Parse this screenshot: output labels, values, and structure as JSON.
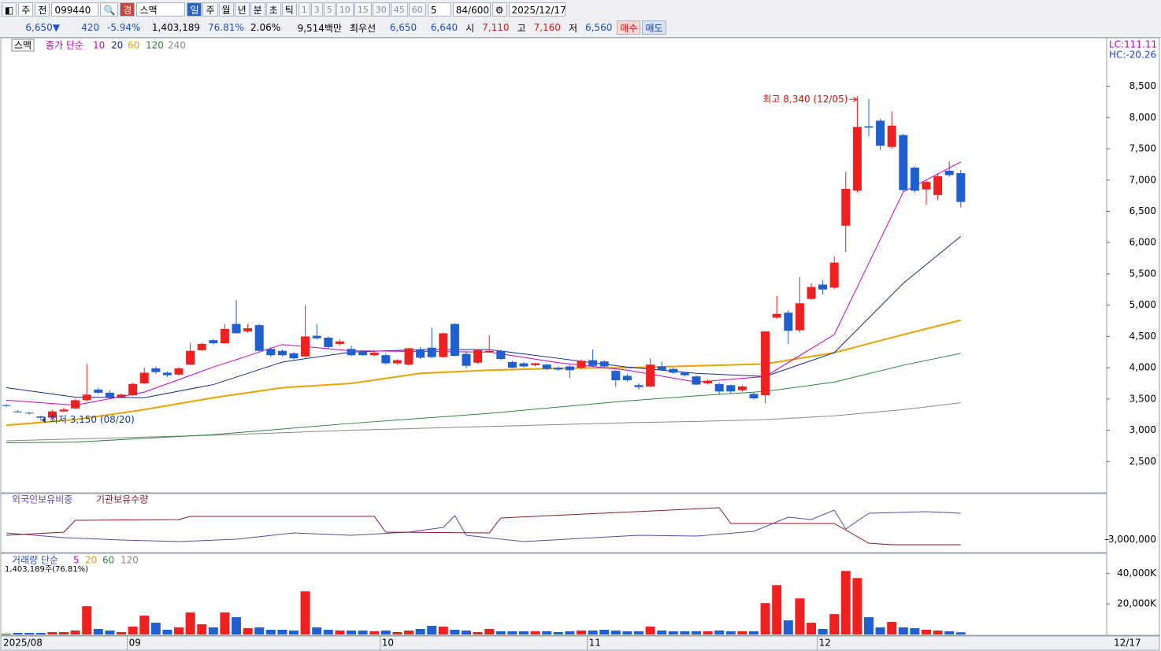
{
  "toolbar": {
    "market": "주",
    "prev": "전",
    "code": "099440",
    "badge": "경",
    "name": "스맥",
    "periods": [
      "일",
      "주",
      "월",
      "년",
      "분",
      "초",
      "틱"
    ],
    "minutes": [
      "1",
      "3",
      "5",
      "10",
      "15",
      "30",
      "45",
      "60"
    ],
    "interval": "5",
    "count": "84/600",
    "date": "2025/12/17"
  },
  "quote": {
    "price": "6,650",
    "arrow": "▼",
    "change": "420",
    "change_rate": "-5.94%",
    "volume": "1,403,189",
    "volume_ratio": "76.81%",
    "turnover": "2.06%",
    "amount": "9,514백만",
    "best_label": "최우선",
    "ask": "6,650",
    "bid": "6,640",
    "open_label": "시",
    "open": "7,110",
    "high_label": "고",
    "high": "7,160",
    "low_label": "저",
    "low": "6,560",
    "buy": "매수",
    "sell": "매도"
  },
  "chart_data": [
    {
      "type": "candlestick",
      "title": "스맥",
      "ma_label": "종가 단순",
      "up_color": "#ee2020",
      "down_color": "#1f5fd0",
      "categories": [
        "2025/08",
        null,
        null,
        null,
        null,
        null,
        null,
        null,
        null,
        null,
        null,
        "09",
        null,
        null,
        null,
        null,
        null,
        null,
        null,
        null,
        null,
        null,
        null,
        null,
        null,
        null,
        null,
        null,
        null,
        null,
        null,
        null,
        null,
        "10",
        null,
        null,
        null,
        null,
        null,
        null,
        null,
        null,
        null,
        null,
        null,
        null,
        null,
        null,
        null,
        null,
        null,
        "11",
        null,
        null,
        null,
        null,
        null,
        null,
        null,
        null,
        null,
        null,
        null,
        null,
        null,
        null,
        null,
        null,
        null,
        null,
        null,
        "12",
        null,
        null,
        null,
        null,
        null,
        null,
        null,
        null,
        null,
        null,
        null,
        null
      ],
      "open": [
        3400,
        3300,
        3280,
        3220,
        3200,
        3300,
        3350,
        3480,
        3650,
        3600,
        3530,
        3560,
        3750,
        3990,
        3920,
        3890,
        4050,
        4280,
        4440,
        4390,
        4700,
        4580,
        4680,
        4300,
        4270,
        4230,
        4180,
        4510,
        4480,
        4380,
        4300,
        4260,
        4200,
        4200,
        4070,
        4050,
        4290,
        4320,
        4170,
        4700,
        4220,
        4080,
        4250,
        4270,
        4090,
        4070,
        4040,
        4050,
        4000,
        4020,
        4000,
        4120,
        4100,
        3950,
        3870,
        3720,
        3700,
        4020,
        3980,
        3920,
        3860,
        3750,
        3740,
        3720,
        3640,
        3580,
        3560,
        4800,
        4880,
        4600,
        5100,
        5330,
        5280,
        6270,
        6830,
        7860,
        7950,
        7530,
        7720,
        7200,
        6850,
        6760,
        7150,
        7110
      ],
      "high": [
        3420,
        3320,
        3290,
        3230,
        3320,
        3360,
        3500,
        4060,
        3680,
        3640,
        3590,
        3760,
        4000,
        4020,
        3940,
        4010,
        4400,
        4400,
        4460,
        4700,
        5080,
        4700,
        4700,
        4330,
        4290,
        4250,
        5000,
        4700,
        4500,
        4450,
        4350,
        4280,
        4260,
        4230,
        4130,
        4320,
        4330,
        4640,
        4560,
        4710,
        4260,
        4300,
        4520,
        4290,
        4110,
        4090,
        4080,
        4060,
        4020,
        4040,
        4130,
        4290,
        4120,
        3960,
        3900,
        3750,
        4150,
        4100,
        4000,
        3930,
        3880,
        3810,
        3760,
        3730,
        3720,
        3600,
        4580,
        5150,
        4920,
        5450,
        5350,
        5400,
        5780,
        7140,
        8340,
        8300,
        7980,
        8100,
        7740,
        7220,
        7000,
        7100,
        7300,
        7160
      ],
      "low": [
        3370,
        3280,
        3250,
        3150,
        3170,
        3290,
        3340,
        3460,
        3580,
        3500,
        3510,
        3550,
        3740,
        3900,
        3850,
        3870,
        4040,
        4270,
        4370,
        4380,
        4550,
        4560,
        4250,
        4170,
        4180,
        4130,
        4160,
        4450,
        4300,
        4350,
        4180,
        4190,
        4180,
        4050,
        4050,
        4030,
        4140,
        4150,
        4160,
        4180,
        3990,
        4060,
        4240,
        4120,
        3990,
        4000,
        4020,
        3960,
        3950,
        3830,
        3980,
        4010,
        4000,
        3690,
        3780,
        3650,
        3690,
        3950,
        3900,
        3860,
        3720,
        3730,
        3570,
        3590,
        3620,
        3490,
        3430,
        4780,
        4380,
        4560,
        5080,
        5170,
        5260,
        5850,
        6800,
        7700,
        7480,
        7500,
        6820,
        6800,
        6600,
        6680,
        7050,
        6560
      ],
      "close": [
        3390,
        3290,
        3270,
        3200,
        3300,
        3330,
        3480,
        3570,
        3600,
        3530,
        3570,
        3740,
        3920,
        3930,
        3880,
        3990,
        4270,
        4380,
        4390,
        4620,
        4550,
        4630,
        4270,
        4200,
        4200,
        4150,
        4500,
        4470,
        4330,
        4420,
        4200,
        4200,
        4240,
        4070,
        4120,
        4310,
        4160,
        4170,
        4550,
        4190,
        4030,
        4280,
        4270,
        4140,
        4000,
        4020,
        4070,
        3980,
        3970,
        3960,
        4110,
        4030,
        4020,
        3800,
        3800,
        3690,
        4050,
        3960,
        3920,
        3880,
        3730,
        3790,
        3620,
        3620,
        3700,
        3510,
        4580,
        4860,
        4590,
        5030,
        5290,
        5250,
        5680,
        6860,
        7850,
        7840,
        7550,
        7870,
        6840,
        6830,
        6970,
        7060,
        7080,
        6650
      ],
      "ylim": [
        2000,
        9250
      ],
      "yticks": [
        {
          "value": 2500,
          "label": "2,500"
        },
        {
          "value": 3000,
          "label": "3,000"
        },
        {
          "value": 3500,
          "label": "3,500"
        },
        {
          "value": 4000,
          "label": "4,000"
        },
        {
          "value": 4500,
          "label": "4,500"
        },
        {
          "value": 5000,
          "label": "5,000"
        },
        {
          "value": 5500,
          "label": "5,500"
        },
        {
          "value": 6000,
          "label": "6,000"
        },
        {
          "value": 6500,
          "label": "6,500"
        },
        {
          "value": 7000,
          "label": "7,000"
        },
        {
          "value": 7500,
          "label": "7,500"
        },
        {
          "value": 8000,
          "label": "8,000"
        },
        {
          "value": 8500,
          "label": "8,500"
        }
      ],
      "ma_x": [
        0,
        6,
        12,
        18,
        24,
        30,
        36,
        42,
        48,
        54,
        60,
        66,
        72,
        78,
        83
      ],
      "moving_averages": [
        {
          "name": "10",
          "color": "#cc00cc",
          "values": [
            3480,
            3400,
            3610,
            4010,
            4370,
            4270,
            4260,
            4250,
            4080,
            3960,
            3770,
            3860,
            4530,
            6810,
            7290
          ]
        },
        {
          "name": "20",
          "color": "#1a2a8a",
          "values": [
            3680,
            3530,
            3520,
            3730,
            4090,
            4250,
            4290,
            4290,
            4150,
            4010,
            3910,
            3860,
            4240,
            5350,
            6100
          ]
        },
        {
          "name": "60",
          "color": "#e8a400",
          "values": [
            3080,
            3170,
            3330,
            3520,
            3680,
            3750,
            3910,
            3960,
            3990,
            4000,
            4030,
            4060,
            4240,
            4530,
            4760
          ]
        },
        {
          "name": "120",
          "color": "#2a8a3a",
          "values": [
            2800,
            2810,
            2870,
            2930,
            3020,
            3110,
            3190,
            3270,
            3370,
            3470,
            3550,
            3620,
            3770,
            4040,
            4230
          ]
        },
        {
          "name": "240",
          "color": "#888888",
          "values": [
            2830,
            2860,
            2890,
            2920,
            2960,
            3000,
            3030,
            3060,
            3090,
            3120,
            3140,
            3170,
            3230,
            3330,
            3440
          ]
        }
      ],
      "high_annotation": "최고 8,340 (12/05)",
      "low_annotation": "최저 3,150 (08/20)",
      "right_labels": [
        "LC:111.11",
        "HC:-20.26"
      ],
      "axis_end_label": "12/17"
    },
    {
      "type": "line",
      "ylim": [
        -3800000,
        0
      ],
      "yticks": [
        {
          "value": -3000000,
          "label": "-3,000,000"
        }
      ],
      "series": [
        {
          "name": "외국인보유비중",
          "color": "#5a4ab0",
          "x": [
            0,
            5,
            10,
            15,
            20,
            25,
            30,
            35,
            38,
            39,
            40,
            45,
            50,
            55,
            60,
            65,
            68,
            70,
            72,
            73,
            75,
            80,
            83
          ],
          "values": [
            -2551000,
            -2877000,
            -3040000,
            -3149000,
            -2986000,
            -2551000,
            -2714000,
            -2497000,
            -2171000,
            -1357000,
            -2714000,
            -3149000,
            -2931000,
            -2714000,
            -2769000,
            -2443000,
            -1466000,
            -1629000,
            -977000,
            -2280000,
            -1194000,
            -1086000,
            -1194000
          ]
        },
        {
          "name": "기관보유수량",
          "color": "#8b1a2a",
          "x": [
            0,
            5,
            6,
            15,
            16,
            32,
            33,
            42,
            43,
            62,
            63,
            72,
            75,
            77,
            83
          ],
          "values": [
            -2714000,
            -2497000,
            -1683000,
            -1629000,
            -1411000,
            -1411000,
            -2497000,
            -2551000,
            -1520000,
            -814000,
            -1900000,
            -1900000,
            -3257000,
            -3366000,
            -3366000
          ]
        }
      ]
    },
    {
      "type": "bar",
      "title": "거래량 단순",
      "ylim": [
        0,
        52000000
      ],
      "yticks": [
        {
          "value": 20000000,
          "label": "20,000K"
        },
        {
          "value": 40000000,
          "label": "40,000K"
        }
      ],
      "ma_names": [
        {
          "name": "5",
          "color": "#cc00cc"
        },
        {
          "name": "20",
          "color": "#e8a400"
        },
        {
          "name": "60",
          "color": "#2a8a3a"
        },
        {
          "name": "120",
          "color": "#888888"
        }
      ],
      "value_label": "1,403,189주(76.81%)",
      "values": [
        510000,
        1030000,
        1030000,
        1030000,
        1540000,
        1540000,
        2560000,
        18460000,
        3590000,
        2560000,
        1540000,
        5130000,
        12310000,
        7690000,
        3080000,
        4620000,
        14360000,
        6670000,
        4620000,
        14360000,
        11280000,
        4100000,
        4620000,
        3080000,
        3080000,
        2560000,
        28210000,
        4620000,
        3080000,
        2560000,
        2560000,
        2560000,
        2050000,
        2560000,
        1540000,
        2560000,
        3590000,
        5640000,
        5130000,
        3080000,
        2560000,
        1540000,
        3590000,
        2050000,
        2050000,
        2050000,
        2050000,
        2050000,
        1540000,
        2050000,
        2560000,
        2560000,
        3080000,
        2560000,
        2050000,
        2050000,
        5130000,
        2560000,
        2050000,
        2050000,
        2050000,
        2050000,
        2560000,
        2050000,
        2050000,
        2050000,
        20510000,
        32310000,
        9230000,
        23590000,
        7690000,
        3590000,
        13330000,
        41540000,
        36920000,
        11280000,
        4620000,
        8210000,
        4620000,
        4100000,
        3080000,
        2560000,
        2050000,
        1403189
      ]
    }
  ]
}
